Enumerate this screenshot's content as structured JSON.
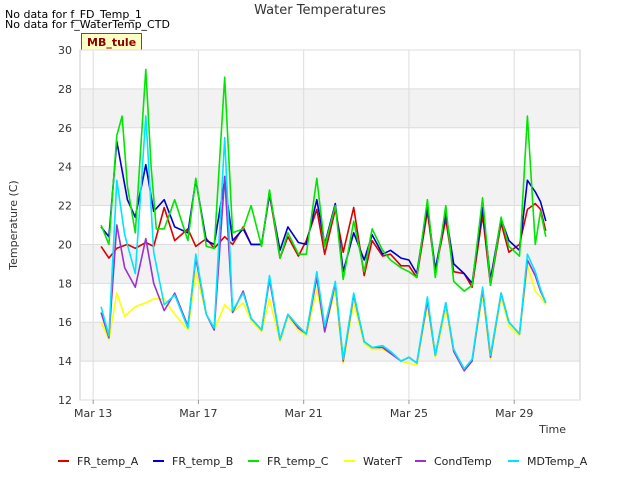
{
  "header": {
    "no_data_1": "No data for f_FD_Temp_1",
    "no_data_2": "No data for f_WaterTemp_CTD",
    "badge": "MB_tule"
  },
  "chart_data": {
    "type": "line",
    "title": "Water Temperatures",
    "xlabel": "Time",
    "ylabel": "Temperature (C)",
    "ylim": [
      12,
      30
    ],
    "yticks": [
      12,
      14,
      16,
      18,
      20,
      22,
      24,
      26,
      28,
      30
    ],
    "xlim": [
      "Mar 12 12:00",
      "Mar 31 12:00"
    ],
    "xticks": [
      {
        "label": "Mar 13",
        "day": 13
      },
      {
        "label": "Mar 17",
        "day": 17
      },
      {
        "label": "Mar 21",
        "day": 21
      },
      {
        "label": "Mar 25",
        "day": 25
      },
      {
        "label": "Mar 29",
        "day": 29
      }
    ],
    "grid": true,
    "legend_position": "bottom",
    "series": [
      {
        "name": "FR_temp_A",
        "color": "#dd0000",
        "x": [
          13.3,
          13.6,
          13.9,
          14.3,
          14.6,
          15.0,
          15.3,
          15.7,
          16.1,
          16.6,
          16.9,
          17.3,
          17.6,
          18.0,
          18.3,
          18.7,
          19.0,
          19.4,
          19.7,
          20.1,
          20.4,
          20.8,
          21.1,
          21.5,
          21.8,
          22.2,
          22.5,
          22.9,
          23.3,
          23.6,
          24.0,
          24.3,
          24.7,
          25.0,
          25.3,
          25.7,
          26.0,
          26.4,
          26.7,
          27.1,
          27.4,
          27.8,
          28.1,
          28.5,
          28.8,
          29.2,
          29.5,
          29.8,
          30.0,
          30.2
        ],
        "y": [
          19.9,
          19.3,
          19.8,
          20.0,
          19.8,
          20.1,
          19.9,
          21.9,
          20.2,
          20.8,
          19.9,
          20.3,
          19.8,
          20.4,
          20.0,
          20.9,
          20.0,
          20.0,
          22.6,
          19.3,
          20.4,
          19.4,
          20.2,
          21.8,
          19.5,
          21.8,
          19.6,
          21.9,
          18.4,
          20.2,
          19.4,
          19.5,
          18.9,
          18.9,
          18.3,
          21.7,
          18.6,
          21.3,
          18.6,
          18.5,
          17.8,
          21.5,
          17.9,
          21.1,
          19.6,
          20.0,
          21.8,
          22.1,
          21.8,
          20.7
        ]
      },
      {
        "name": "FR_temp_B",
        "color": "#0000cc",
        "x": [
          13.3,
          13.6,
          13.9,
          14.3,
          14.6,
          15.0,
          15.3,
          15.7,
          16.1,
          16.6,
          16.9,
          17.3,
          17.6,
          18.0,
          18.3,
          18.7,
          19.0,
          19.4,
          19.7,
          20.1,
          20.4,
          20.8,
          21.1,
          21.5,
          21.8,
          22.2,
          22.5,
          22.9,
          23.3,
          23.6,
          24.0,
          24.3,
          24.7,
          25.0,
          25.3,
          25.7,
          26.0,
          26.4,
          26.7,
          27.1,
          27.4,
          27.8,
          28.1,
          28.5,
          28.8,
          29.2,
          29.5,
          29.8,
          30.0,
          30.2
        ],
        "y": [
          20.9,
          20.4,
          25.3,
          22.3,
          21.4,
          24.1,
          21.7,
          22.3,
          20.9,
          20.6,
          23.3,
          20.2,
          20.0,
          23.3,
          20.2,
          20.8,
          20.0,
          20.0,
          22.6,
          19.7,
          20.9,
          20.1,
          20.0,
          22.3,
          20.0,
          22.1,
          18.6,
          20.6,
          19.2,
          20.5,
          19.5,
          19.7,
          19.3,
          19.2,
          18.5,
          22.0,
          18.7,
          21.6,
          19.0,
          18.5,
          18.0,
          21.9,
          18.2,
          21.3,
          20.2,
          19.7,
          23.3,
          22.7,
          22.2,
          21.2
        ]
      },
      {
        "name": "FR_temp_C",
        "color": "#00e600",
        "x": [
          13.3,
          13.6,
          13.9,
          14.1,
          14.3,
          14.6,
          15.0,
          15.2,
          15.4,
          15.7,
          16.1,
          16.6,
          16.9,
          17.3,
          17.6,
          18.0,
          18.3,
          18.7,
          19.0,
          19.4,
          19.7,
          20.1,
          20.4,
          20.8,
          21.1,
          21.5,
          21.8,
          22.2,
          22.5,
          22.9,
          23.3,
          23.6,
          24.0,
          24.3,
          24.7,
          25.0,
          25.3,
          25.7,
          26.0,
          26.4,
          26.7,
          27.1,
          27.4,
          27.8,
          28.1,
          28.5,
          28.8,
          29.2,
          29.5,
          29.8,
          30.0,
          30.2
        ],
        "y": [
          21.0,
          20.0,
          25.6,
          26.6,
          23.0,
          20.6,
          29.0,
          24.0,
          20.8,
          20.8,
          22.3,
          20.2,
          23.4,
          19.9,
          19.8,
          28.6,
          20.6,
          20.8,
          22.0,
          19.9,
          22.8,
          19.3,
          20.6,
          19.5,
          19.5,
          23.4,
          19.9,
          22.0,
          18.2,
          21.2,
          18.6,
          20.8,
          19.7,
          19.2,
          18.8,
          18.6,
          18.3,
          22.3,
          18.3,
          22.0,
          18.1,
          17.6,
          17.9,
          22.4,
          17.9,
          21.4,
          19.9,
          19.4,
          26.6,
          20.0,
          21.7,
          20.4
        ]
      },
      {
        "name": "WaterT",
        "color": "#ffff00",
        "x": [
          13.3,
          13.6,
          13.9,
          14.2,
          14.6,
          15.0,
          15.3,
          15.7,
          16.1,
          16.6,
          16.9,
          17.3,
          17.6,
          18.0,
          18.3,
          18.7,
          19.0,
          19.4,
          19.7,
          20.1,
          20.4,
          20.8,
          21.1,
          21.5,
          21.8,
          22.2,
          22.5,
          22.9,
          23.3,
          23.6,
          24.0,
          24.3,
          24.7,
          25.0,
          25.3,
          25.7,
          26.0,
          26.4,
          26.7,
          27.1,
          27.4,
          27.8,
          28.1,
          28.5,
          28.8,
          29.2,
          29.5,
          29.8,
          30.0,
          30.2
        ],
        "y": [
          16.0,
          15.1,
          17.5,
          16.3,
          16.8,
          17.0,
          17.2,
          17.2,
          16.4,
          15.6,
          18.6,
          16.4,
          15.6,
          16.9,
          16.5,
          17.0,
          16.1,
          15.5,
          17.2,
          15.0,
          16.3,
          15.6,
          15.3,
          17.7,
          15.6,
          17.6,
          13.9,
          17.0,
          14.9,
          14.6,
          14.6,
          14.4,
          14.0,
          13.9,
          13.8,
          16.9,
          14.2,
          16.7,
          14.5,
          13.5,
          14.1,
          17.4,
          14.1,
          17.3,
          15.8,
          15.3,
          18.9,
          17.6,
          17.3,
          16.9
        ]
      },
      {
        "name": "CondTemp",
        "color": "#9933cc",
        "x": [
          13.3,
          13.6,
          13.9,
          14.2,
          14.6,
          15.0,
          15.3,
          15.7,
          16.1,
          16.6,
          16.9,
          17.3,
          17.6,
          18.0,
          18.3,
          18.7,
          19.0,
          19.4,
          19.7,
          20.1,
          20.4,
          20.8,
          21.1,
          21.5,
          21.8,
          22.2,
          22.5,
          22.9,
          23.3,
          23.6,
          24.0,
          24.3,
          24.7,
          25.0,
          25.3,
          25.7,
          26.0,
          26.4,
          26.7,
          27.1,
          27.4,
          27.8,
          28.1,
          28.5,
          28.8,
          29.2,
          29.5,
          29.8,
          30.0,
          30.2
        ],
        "y": [
          16.5,
          15.2,
          21.0,
          18.8,
          17.8,
          20.3,
          18.0,
          16.6,
          17.5,
          15.8,
          19.3,
          16.4,
          15.6,
          23.5,
          16.5,
          17.6,
          16.2,
          15.6,
          18.2,
          15.1,
          16.4,
          15.7,
          15.4,
          18.3,
          15.5,
          18.0,
          14.0,
          17.4,
          15.0,
          14.7,
          14.7,
          14.4,
          14.0,
          14.2,
          13.9,
          17.1,
          14.3,
          17.0,
          14.5,
          13.5,
          14.0,
          17.7,
          14.2,
          17.5,
          16.0,
          15.4,
          19.2,
          18.4,
          17.6,
          17.0
        ]
      },
      {
        "name": "MDTemp_A",
        "color": "#00e5ff",
        "x": [
          13.3,
          13.6,
          13.9,
          14.2,
          14.6,
          15.0,
          15.3,
          15.7,
          16.1,
          16.6,
          16.9,
          17.3,
          17.6,
          18.0,
          18.3,
          18.7,
          19.0,
          19.4,
          19.7,
          20.1,
          20.4,
          20.8,
          21.1,
          21.5,
          21.8,
          22.2,
          22.5,
          22.9,
          23.3,
          23.6,
          24.0,
          24.3,
          24.7,
          25.0,
          25.3,
          25.7,
          26.0,
          26.4,
          26.7,
          27.1,
          27.4,
          27.8,
          28.1,
          28.5,
          28.8,
          29.2,
          29.5,
          29.8,
          30.0,
          30.2
        ],
        "y": [
          16.8,
          15.3,
          23.3,
          20.5,
          18.5,
          26.6,
          19.6,
          16.9,
          17.4,
          15.7,
          19.5,
          16.4,
          15.7,
          25.5,
          16.6,
          17.5,
          16.2,
          15.6,
          18.4,
          15.1,
          16.4,
          15.8,
          15.4,
          18.6,
          15.8,
          18.1,
          14.1,
          17.5,
          15.0,
          14.7,
          14.8,
          14.5,
          14.0,
          14.2,
          13.9,
          17.3,
          14.3,
          17.0,
          14.6,
          13.6,
          14.1,
          17.8,
          14.3,
          17.5,
          16.0,
          15.4,
          19.5,
          18.6,
          17.7,
          17.0
        ]
      }
    ]
  }
}
